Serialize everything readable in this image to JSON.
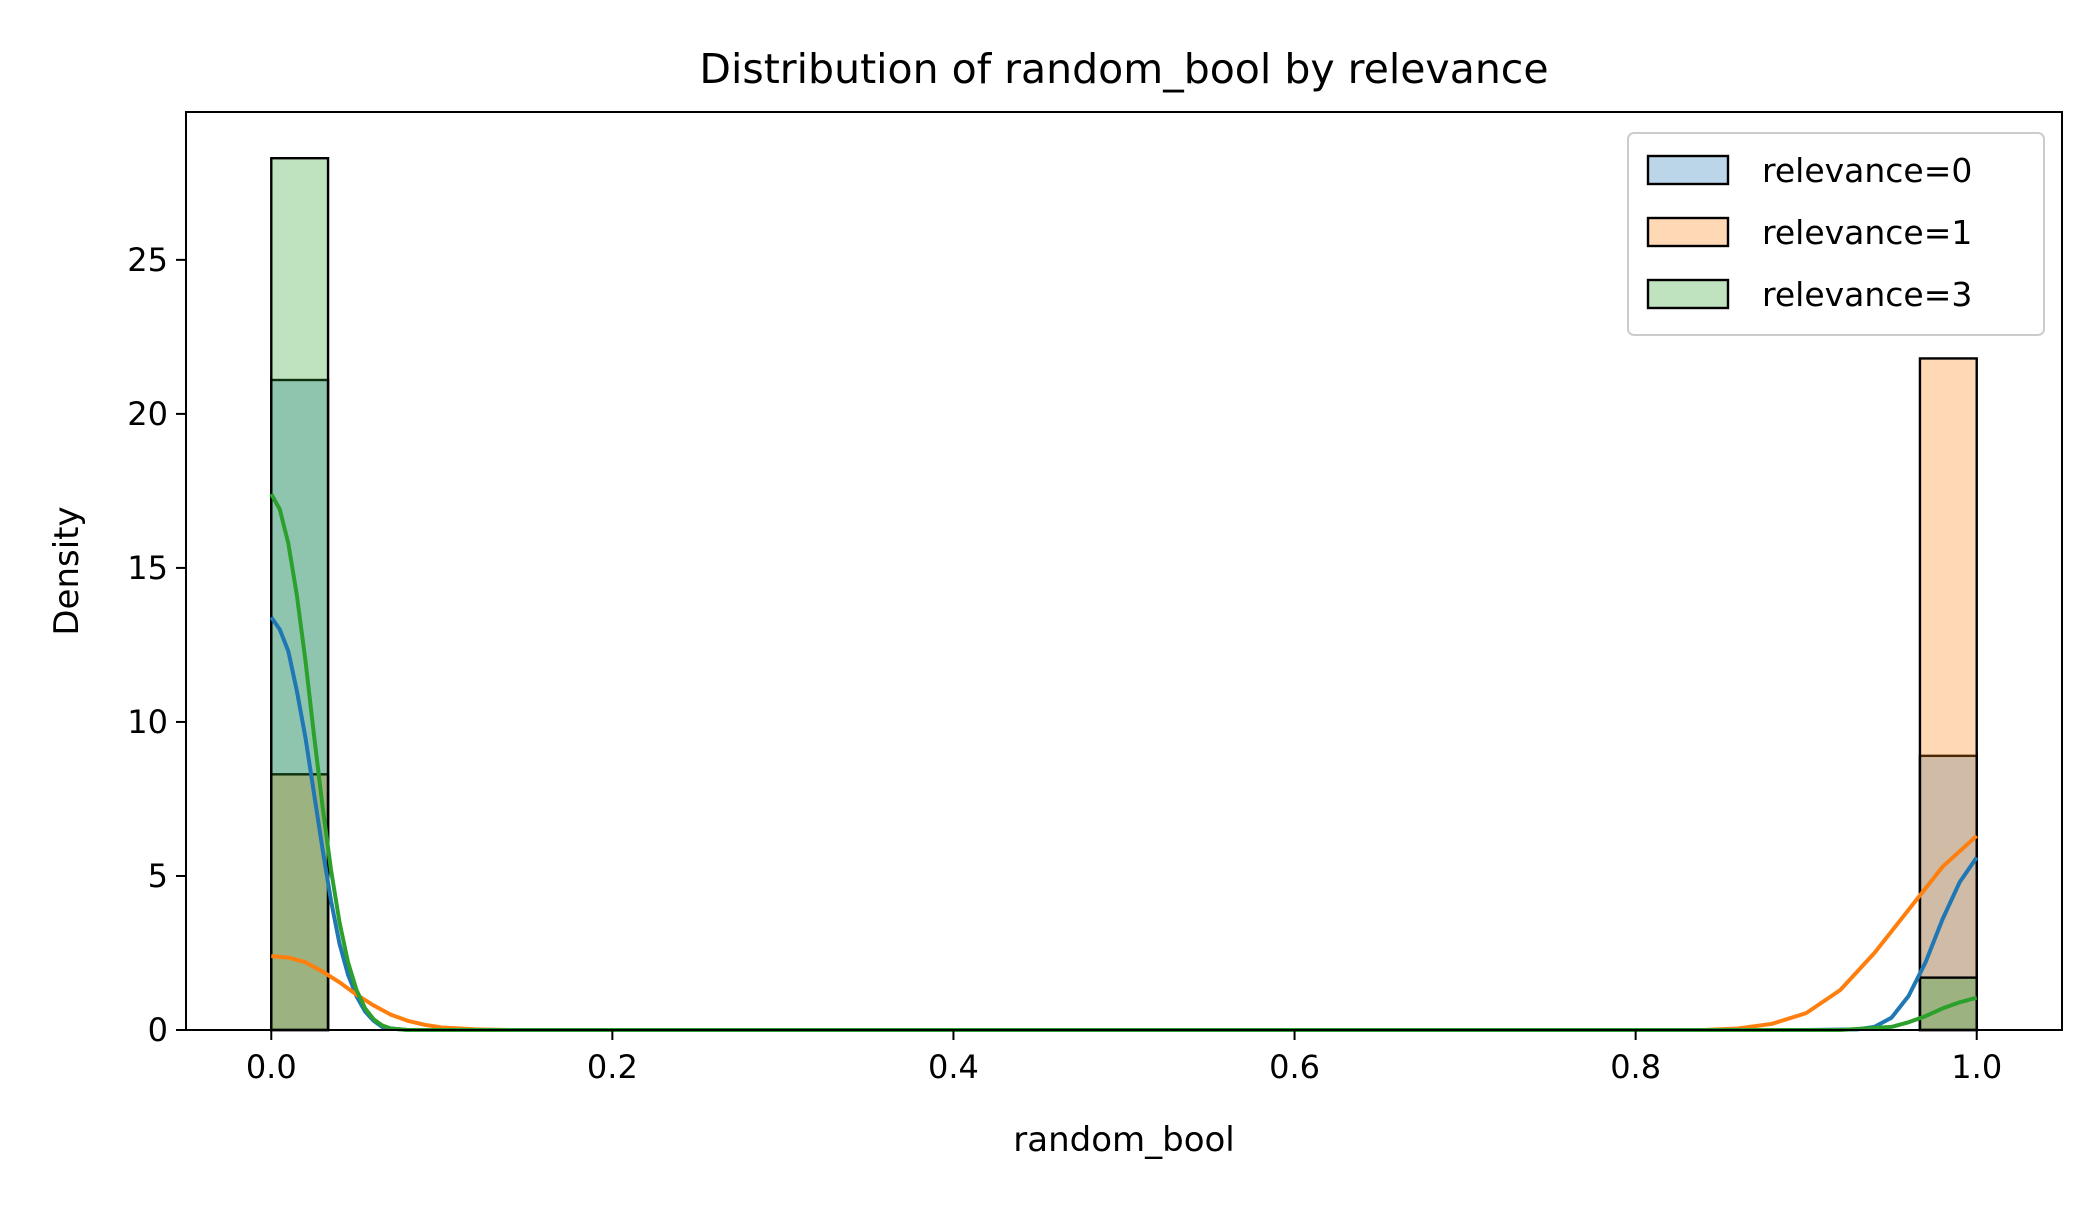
{
  "chart_data": {
    "type": "bar",
    "title": "Distribution of random_bool by relevance",
    "xlabel": "random_bool",
    "ylabel": "Density",
    "xlim": [
      -0.05,
      1.05
    ],
    "ylim": [
      0,
      29.8
    ],
    "x_ticks": [
      "0.0",
      "0.2",
      "0.4",
      "0.6",
      "0.8",
      "1.0"
    ],
    "x_tick_values": [
      0.0,
      0.2,
      0.4,
      0.6,
      0.8,
      1.0
    ],
    "y_ticks": [
      "0",
      "5",
      "10",
      "15",
      "20",
      "25"
    ],
    "y_tick_values": [
      0,
      5,
      10,
      15,
      20,
      25
    ],
    "grid": false,
    "legend_position": "top-right",
    "bin_width": 0.0333,
    "series": [
      {
        "name": "relevance=0",
        "color": "#1f77b4",
        "fill": "#a6c8e4",
        "bars": [
          {
            "x": 0.0,
            "value": 21.1
          },
          {
            "x": 0.9667,
            "value": 8.9
          }
        ],
        "kde": [
          [
            0.0,
            13.4
          ],
          [
            0.005,
            13.0
          ],
          [
            0.01,
            12.3
          ],
          [
            0.015,
            11.0
          ],
          [
            0.02,
            9.5
          ],
          [
            0.025,
            7.7
          ],
          [
            0.03,
            5.9
          ],
          [
            0.035,
            4.2
          ],
          [
            0.04,
            2.8
          ],
          [
            0.045,
            1.8
          ],
          [
            0.05,
            1.1
          ],
          [
            0.055,
            0.6
          ],
          [
            0.06,
            0.3
          ],
          [
            0.065,
            0.1
          ],
          [
            0.07,
            0.05
          ],
          [
            0.08,
            0.0
          ],
          [
            0.9,
            0.0
          ],
          [
            0.93,
            0.02
          ],
          [
            0.94,
            0.1
          ],
          [
            0.95,
            0.4
          ],
          [
            0.96,
            1.1
          ],
          [
            0.97,
            2.2
          ],
          [
            0.98,
            3.6
          ],
          [
            0.99,
            4.8
          ],
          [
            1.0,
            5.6
          ]
        ]
      },
      {
        "name": "relevance=1",
        "color": "#ff7f0e",
        "fill": "#ffc996",
        "bars": [
          {
            "x": 0.0,
            "value": 8.3
          },
          {
            "x": 0.9667,
            "value": 21.8
          }
        ],
        "kde": [
          [
            0.0,
            2.4
          ],
          [
            0.01,
            2.35
          ],
          [
            0.02,
            2.2
          ],
          [
            0.03,
            1.9
          ],
          [
            0.04,
            1.55
          ],
          [
            0.05,
            1.15
          ],
          [
            0.06,
            0.8
          ],
          [
            0.07,
            0.5
          ],
          [
            0.08,
            0.3
          ],
          [
            0.09,
            0.17
          ],
          [
            0.1,
            0.08
          ],
          [
            0.12,
            0.02
          ],
          [
            0.14,
            0.0
          ],
          [
            0.84,
            0.0
          ],
          [
            0.86,
            0.05
          ],
          [
            0.88,
            0.2
          ],
          [
            0.9,
            0.55
          ],
          [
            0.92,
            1.3
          ],
          [
            0.94,
            2.5
          ],
          [
            0.96,
            3.9
          ],
          [
            0.98,
            5.3
          ],
          [
            1.0,
            6.3
          ]
        ]
      },
      {
        "name": "relevance=3",
        "color": "#2ca02c",
        "fill": "#b3e0b3",
        "bars": [
          {
            "x": 0.0,
            "value": 28.3
          },
          {
            "x": 0.9667,
            "value": 1.7
          }
        ],
        "kde": [
          [
            0.0,
            17.4
          ],
          [
            0.005,
            16.9
          ],
          [
            0.01,
            15.8
          ],
          [
            0.015,
            14.1
          ],
          [
            0.02,
            12.0
          ],
          [
            0.025,
            9.6
          ],
          [
            0.03,
            7.3
          ],
          [
            0.035,
            5.2
          ],
          [
            0.04,
            3.5
          ],
          [
            0.045,
            2.2
          ],
          [
            0.05,
            1.3
          ],
          [
            0.055,
            0.7
          ],
          [
            0.06,
            0.35
          ],
          [
            0.065,
            0.15
          ],
          [
            0.07,
            0.05
          ],
          [
            0.08,
            0.0
          ],
          [
            0.92,
            0.0
          ],
          [
            0.95,
            0.1
          ],
          [
            0.96,
            0.25
          ],
          [
            0.97,
            0.45
          ],
          [
            0.98,
            0.7
          ],
          [
            0.99,
            0.9
          ],
          [
            1.0,
            1.05
          ]
        ]
      }
    ]
  }
}
